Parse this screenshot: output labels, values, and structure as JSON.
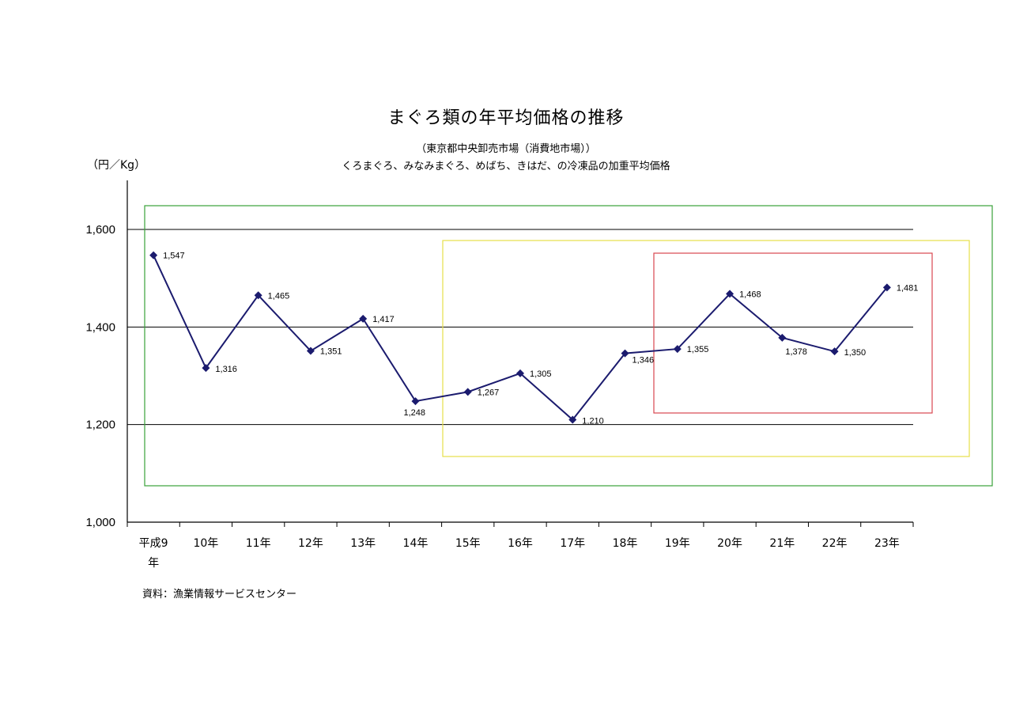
{
  "chart_data": {
    "type": "line",
    "title": "まぐろ類の年平均価格の推移",
    "subtitle": "（東京都中央卸売市場（消費地市場））",
    "subtitle2": "くろまぐろ、みなみまぐろ、めばち、きはだ、の冷凍品の加重平均価格",
    "ylabel": "（円／Kg）",
    "source": "資料：漁業情報サービスセンター",
    "categories": [
      "平成9年",
      "10年",
      "11年",
      "12年",
      "13年",
      "14年",
      "15年",
      "16年",
      "17年",
      "18年",
      "19年",
      "20年",
      "21年",
      "22年",
      "23年"
    ],
    "values": [
      1547,
      1316,
      1465,
      1351,
      1417,
      1248,
      1267,
      1305,
      1210,
      1346,
      1355,
      1468,
      1378,
      1350,
      1481
    ],
    "data_labels": [
      "1,547",
      "1,316",
      "1,465",
      "1,351",
      "1,417",
      "1,248",
      "1,267",
      "1,305",
      "1,210",
      "1,346",
      "1,355",
      "1,468",
      "1,378",
      "1,350",
      "1,481"
    ],
    "yticks": [
      1000,
      1200,
      1400,
      1600
    ],
    "ytick_labels": [
      "1,000",
      "1,200",
      "1,400",
      "1,600"
    ],
    "ylim": [
      1000,
      1600
    ],
    "grid": true,
    "series_color": "#1b1b6e",
    "highlight_boxes": [
      {
        "color": "#3aa23a",
        "from_category": 0,
        "to_category": 14
      },
      {
        "color": "#e6e04a",
        "from_category": 6,
        "to_category": 14
      },
      {
        "color": "#d9474f",
        "from_category": 10,
        "to_category": 13
      }
    ]
  }
}
